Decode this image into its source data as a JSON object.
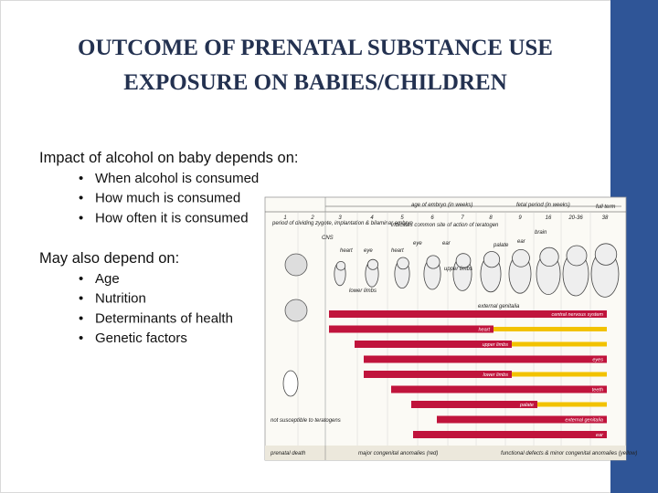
{
  "title": [
    "OUTCOME OF PRENATAL SUBSTANCE USE",
    "EXPOSURE ON BABIES/CHILDREN"
  ],
  "section1": {
    "heading": "Impact of alcohol on baby depends on:",
    "bullets": [
      "When alcohol is consumed",
      "How much is consumed",
      "How often it is consumed"
    ]
  },
  "section2": {
    "heading": "May also depend on:",
    "bullets": [
      "Age",
      "Nutrition",
      "Determinants of health",
      "Genetic factors"
    ]
  },
  "figure": {
    "embryo_header": "age of embryo (in weeks)",
    "fetal_header": "fetal period (in weeks)",
    "full_term": "full term",
    "weeks": [
      "1",
      "2",
      "3",
      "4",
      "5",
      "6",
      "7",
      "8",
      "9",
      "16",
      "20-36",
      "38"
    ],
    "early_period": "period of dividing zygote, implantation & bilaminar embryo",
    "legend_note": "indicates common site of action of teratogen",
    "sites": [
      "CNS",
      "heart",
      "eye",
      "heart",
      "eye",
      "ear",
      "palate",
      "ear",
      "brain",
      "upper limbs",
      "lower limbs",
      "external genitalia"
    ],
    "bars": [
      "central nervous system",
      "heart",
      "upper limbs",
      "eyes",
      "lower limbs",
      "teeth",
      "palate",
      "external genitalia",
      "ear"
    ],
    "not_susceptible": "not susceptible to teratogens",
    "footer": [
      "prenatal death",
      "major congenital anomalies (red)",
      "functional defects & minor congenital anomalies (yellow)"
    ]
  }
}
